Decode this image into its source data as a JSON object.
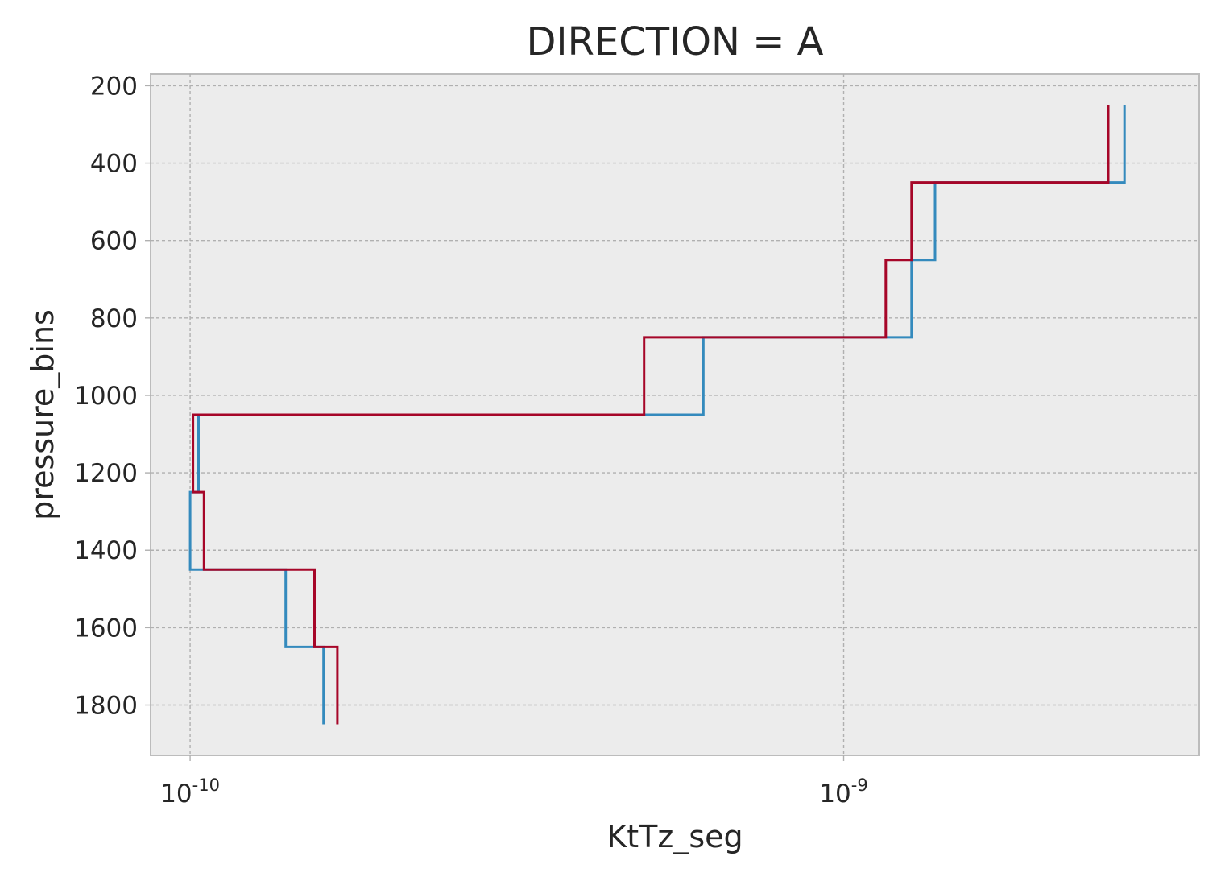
{
  "chart_data": {
    "type": "line",
    "title": "DIRECTION = A",
    "xlabel": "KtTz_seg",
    "ylabel": "pressure_bins",
    "x_scale": "log",
    "y_inverted": true,
    "grid": true,
    "legend": "none",
    "xlim": [
      8.7e-11,
      3.5e-09
    ],
    "ylim": [
      1930,
      170
    ],
    "x_ticks": [
      {
        "value": 1e-10,
        "base": "10",
        "exp": "-10"
      },
      {
        "value": 1e-09,
        "base": "10",
        "exp": "-9"
      }
    ],
    "y_ticks": [
      {
        "value": 200,
        "label": "200"
      },
      {
        "value": 400,
        "label": "400"
      },
      {
        "value": 600,
        "label": "600"
      },
      {
        "value": 800,
        "label": "800"
      },
      {
        "value": 1000,
        "label": "1000"
      },
      {
        "value": 1200,
        "label": "1200"
      },
      {
        "value": 1400,
        "label": "1400"
      },
      {
        "value": 1600,
        "label": "1600"
      },
      {
        "value": 1800,
        "label": "1800"
      }
    ],
    "step_edges": [
      250,
      450,
      650,
      850,
      1050,
      1250,
      1450,
      1650,
      1850
    ],
    "series": [
      {
        "color": "#348abd",
        "values": [
          2.69e-09,
          1.38e-09,
          1.27e-09,
          6.1e-10,
          1.03e-10,
          1e-10,
          1.4e-10,
          1.6e-10
        ]
      },
      {
        "color": "#a60628",
        "values": [
          2.54e-09,
          1.27e-09,
          1.16e-09,
          4.95e-10,
          1.01e-10,
          1.05e-10,
          1.55e-10,
          1.68e-10
        ]
      }
    ]
  },
  "colors": {
    "plot_background": "#ececec",
    "frame": "#bcbcbc",
    "grid": "#b0b0b0",
    "text": "#262626"
  }
}
